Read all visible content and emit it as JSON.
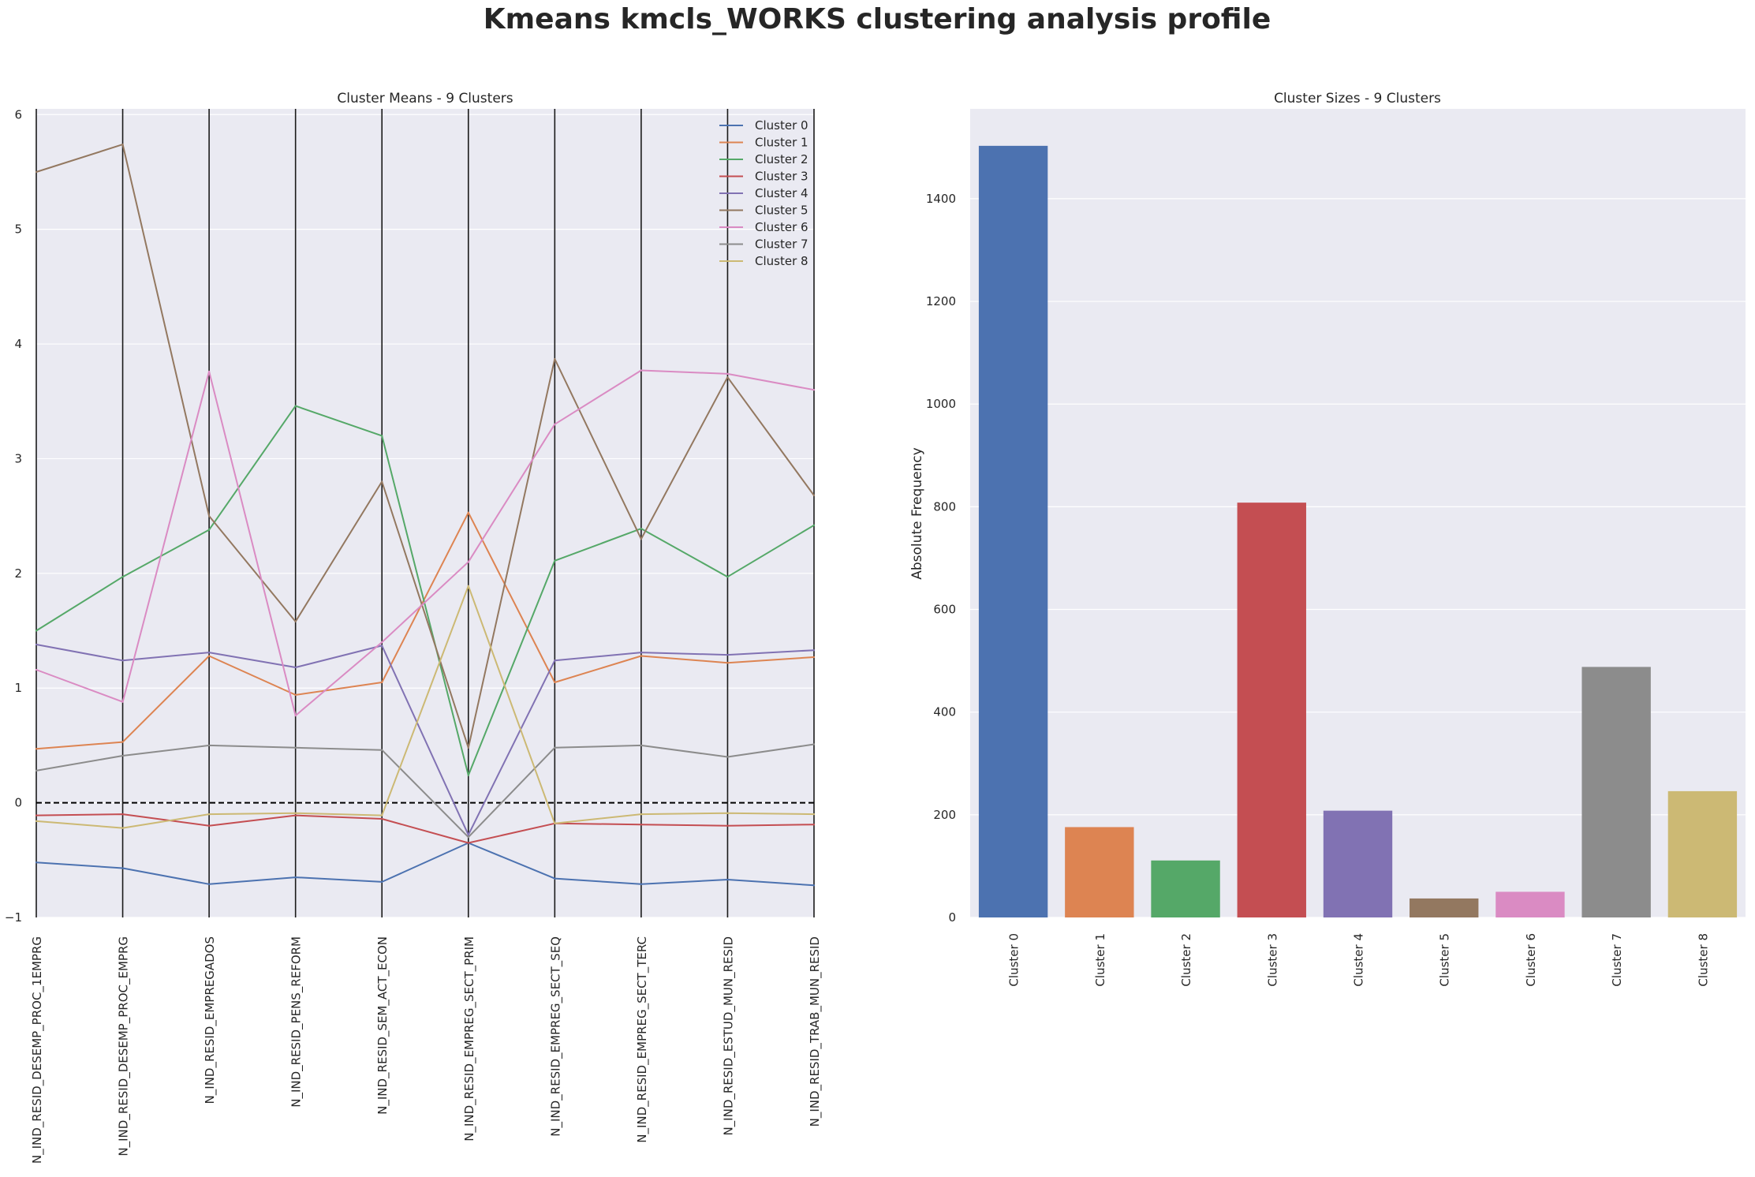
{
  "figure": {
    "title": "Kmeans kmcls_WORKS clustering analysis profile"
  },
  "chart_data": [
    {
      "type": "line",
      "title": "Cluster Means - 9 Clusters",
      "xlabel": "",
      "ylabel": "",
      "ylim": [
        -1,
        6.05
      ],
      "yticks": [
        -1,
        0,
        1,
        2,
        3,
        4,
        5,
        6
      ],
      "grid": true,
      "legend": "top-right",
      "reference_line": 0,
      "categories": [
        "N_IND_RESID_DESEMP_PROC_1EMPRG",
        "N_IND_RESID_DESEMP_PROC_EMPRG",
        "N_IND_RESID_EMPREGADOS",
        "N_IND_RESID_PENS_REFORM",
        "N_IND_RESID_SEM_ACT_ECON",
        "N_IND_RESID_EMPREG_SECT_PRIM",
        "N_IND_RESID_EMPREG_SECT_SEQ",
        "N_IND_RESID_EMPREG_SECT_TERC",
        "N_IND_RESID_ESTUD_MUN_RESID",
        "N_IND_RESID_TRAB_MUN_RESID"
      ],
      "series": [
        {
          "name": "Cluster 0",
          "color": "#4c72b0",
          "values": [
            -0.52,
            -0.57,
            -0.71,
            -0.65,
            -0.69,
            -0.35,
            -0.66,
            -0.71,
            -0.67,
            -0.72
          ]
        },
        {
          "name": "Cluster 1",
          "color": "#dd8452",
          "values": [
            0.47,
            0.53,
            1.28,
            0.94,
            1.05,
            2.53,
            1.05,
            1.28,
            1.22,
            1.27
          ]
        },
        {
          "name": "Cluster 2",
          "color": "#55a868",
          "values": [
            1.5,
            1.97,
            2.38,
            3.46,
            3.2,
            0.24,
            2.11,
            2.39,
            1.97,
            2.42
          ]
        },
        {
          "name": "Cluster 3",
          "color": "#c44e52",
          "values": [
            -0.11,
            -0.1,
            -0.2,
            -0.11,
            -0.14,
            -0.35,
            -0.18,
            -0.19,
            -0.2,
            -0.19
          ]
        },
        {
          "name": "Cluster 4",
          "color": "#8172b3",
          "values": [
            1.38,
            1.24,
            1.31,
            1.18,
            1.37,
            -0.28,
            1.24,
            1.31,
            1.29,
            1.33
          ]
        },
        {
          "name": "Cluster 5",
          "color": "#937860",
          "values": [
            5.5,
            5.74,
            2.5,
            1.58,
            2.8,
            0.48,
            3.87,
            2.3,
            3.71,
            2.68
          ]
        },
        {
          "name": "Cluster 6",
          "color": "#da8bc3",
          "values": [
            1.16,
            0.88,
            3.76,
            0.76,
            1.4,
            2.1,
            3.3,
            3.77,
            3.74,
            3.6
          ]
        },
        {
          "name": "Cluster 7",
          "color": "#8c8c8c",
          "values": [
            0.28,
            0.41,
            0.5,
            0.48,
            0.46,
            -0.3,
            0.48,
            0.5,
            0.4,
            0.51
          ]
        },
        {
          "name": "Cluster 8",
          "color": "#ccb974",
          "values": [
            -0.16,
            -0.22,
            -0.1,
            -0.09,
            -0.11,
            1.89,
            -0.18,
            -0.1,
            -0.09,
            -0.1
          ]
        }
      ]
    },
    {
      "type": "bar",
      "title": "Cluster Sizes - 9 Clusters",
      "xlabel": "",
      "ylabel": "Absolute Frequency",
      "ylim": [
        0,
        1575
      ],
      "yticks": [
        0,
        200,
        400,
        600,
        800,
        1000,
        1200,
        1400
      ],
      "grid": true,
      "categories": [
        "Cluster 0",
        "Cluster 1",
        "Cluster 2",
        "Cluster 3",
        "Cluster 4",
        "Cluster 5",
        "Cluster 6",
        "Cluster 7",
        "Cluster 8"
      ],
      "values": [
        1503,
        176,
        111,
        808,
        208,
        37,
        50,
        488,
        246
      ],
      "colors": [
        "#4c72b0",
        "#dd8452",
        "#55a868",
        "#c44e52",
        "#8172b3",
        "#937860",
        "#da8bc3",
        "#8c8c8c",
        "#ccb974"
      ]
    }
  ]
}
